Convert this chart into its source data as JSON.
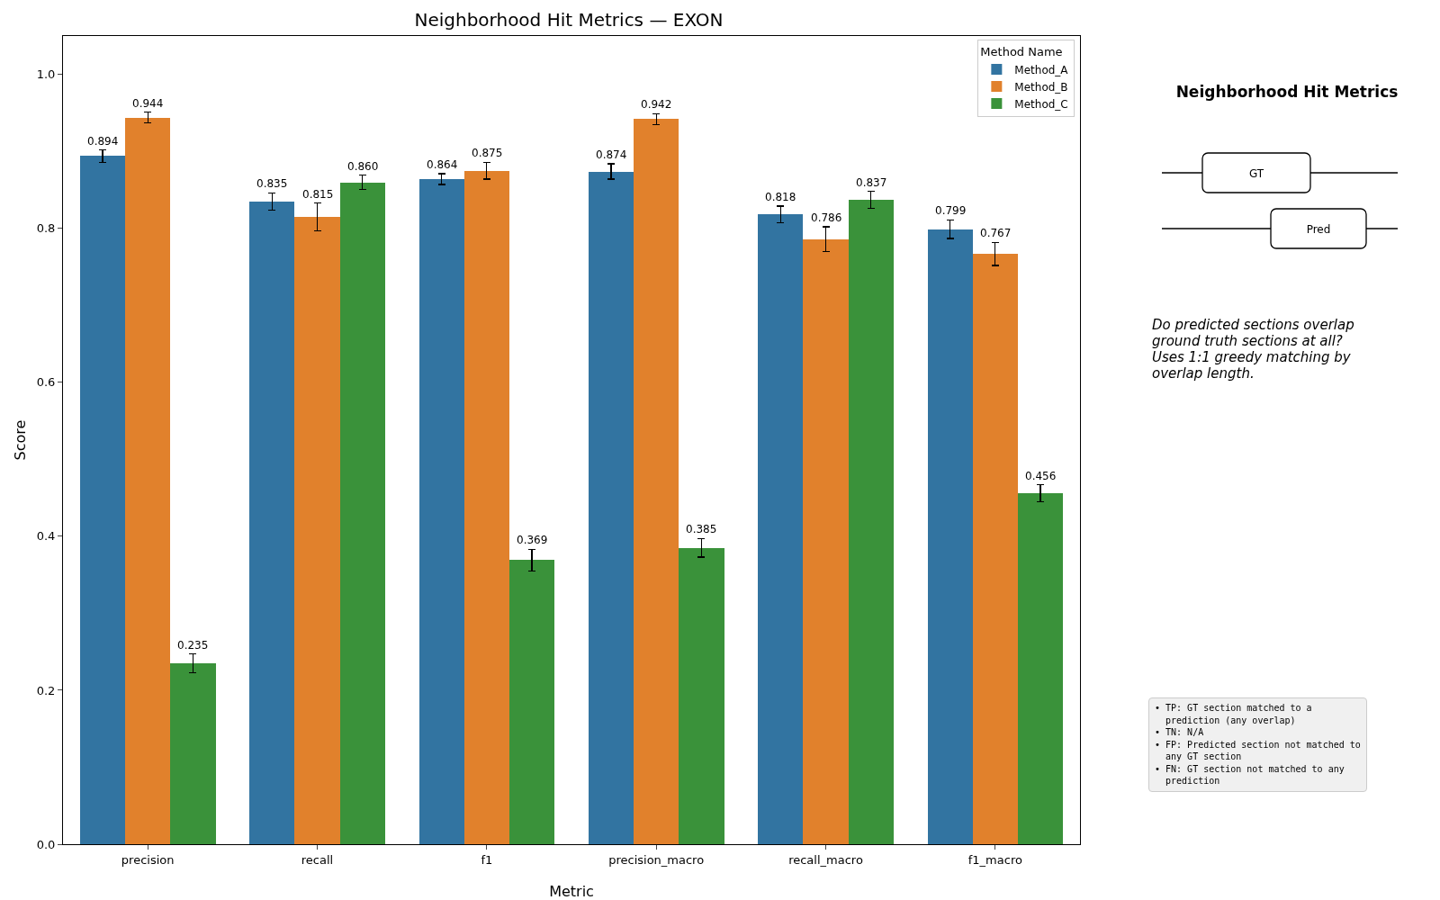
{
  "chart_data": {
    "type": "bar",
    "title": "Neighborhood Hit Metrics — EXON",
    "xlabel": "Metric",
    "ylabel": "Score",
    "legend_title": "Method Name",
    "categories": [
      "precision",
      "recall",
      "f1",
      "precision_macro",
      "recall_macro",
      "f1_macro"
    ],
    "series": [
      {
        "name": "Method_A",
        "color": "#3274a1",
        "values": [
          0.894,
          0.835,
          0.864,
          0.874,
          0.818,
          0.799
        ],
        "errors": [
          0.008,
          0.011,
          0.007,
          0.01,
          0.011,
          0.012
        ],
        "value_labels": [
          "0.894",
          "0.835",
          "0.864",
          "0.874",
          "0.818",
          "0.799"
        ]
      },
      {
        "name": "Method_B",
        "color": "#e1812c",
        "values": [
          0.944,
          0.815,
          0.875,
          0.942,
          0.786,
          0.767
        ],
        "errors": [
          0.007,
          0.018,
          0.011,
          0.007,
          0.016,
          0.015
        ],
        "value_labels": [
          "0.944",
          "0.815",
          "0.875",
          "0.942",
          "0.786",
          "0.767"
        ]
      },
      {
        "name": "Method_C",
        "color": "#3a923a",
        "values": [
          0.235,
          0.86,
          0.369,
          0.385,
          0.837,
          0.456
        ],
        "errors": [
          0.012,
          0.009,
          0.014,
          0.012,
          0.011,
          0.011
        ],
        "value_labels": [
          "0.235",
          "0.860",
          "0.369",
          "0.385",
          "0.837",
          "0.456"
        ]
      }
    ],
    "ylim": [
      0,
      1.05
    ],
    "yticks": [
      {
        "value": 0,
        "label": "0.0"
      },
      {
        "value": 0.2,
        "label": "0.2"
      },
      {
        "value": 0.4,
        "label": "0.4"
      },
      {
        "value": 0.6,
        "label": "0.6"
      },
      {
        "value": 0.8,
        "label": "0.8"
      },
      {
        "value": 1,
        "label": "1.0"
      }
    ],
    "grid": false,
    "legend": "top right",
    "annotations": [
      "Neighborhood Hit Metrics",
      "GT",
      "Pred",
      "Do predicted sections overlap\nground truth sections at all?\nUses 1:1 greedy matching by\noverlap length.",
      "• TP: GT section matched to a\n  prediction (any overlap)\n• TN: N/A\n• FP: Predicted section not matched to\n  any GT section\n• FN: GT section not matched to any\n  prediction"
    ]
  }
}
